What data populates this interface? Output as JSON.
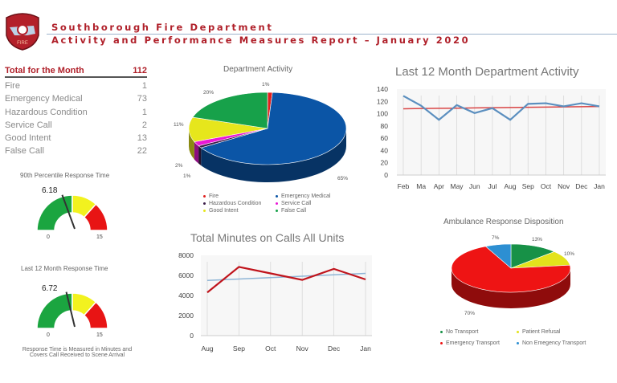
{
  "header": {
    "logo_text": "FIRE",
    "title": "Southborough Fire Department",
    "subtitle": "Activity and Performance Measures Report – January 2020"
  },
  "summary_table": {
    "header_label": "Total for the Month",
    "header_value": "112",
    "rows": [
      {
        "label": "Fire",
        "value": "1"
      },
      {
        "label": "Emergency Medical",
        "value": "73"
      },
      {
        "label": "Hazardous Condition",
        "value": "1"
      },
      {
        "label": "Service Call",
        "value": "2"
      },
      {
        "label": "Good Intent",
        "value": "13"
      },
      {
        "label": "False Call",
        "value": "22"
      }
    ]
  },
  "gauges": [
    {
      "title": "90th Percentile Response Time",
      "value": 6.18,
      "value_label": "6.18",
      "min_label": "0",
      "max_label": "15",
      "min": 0,
      "max": 15
    },
    {
      "title": "Last 12 Month Response Time",
      "value": 6.72,
      "value_label": "6.72",
      "min_label": "0",
      "max_label": "15",
      "min": 0,
      "max": 15
    }
  ],
  "footnote": [
    "Response Time is Measured in Minutes and",
    "Covers Call Received to Scene Arrival"
  ],
  "chart_data": [
    {
      "type": "pie",
      "title": "Department Activity",
      "categories": [
        "Fire",
        "Emergency Medical",
        "Hazardous Condition",
        "Service Call",
        "Good Intent",
        "False Call"
      ],
      "values": [
        1,
        65,
        1,
        2,
        11,
        20
      ],
      "labels": [
        "1%",
        "65%",
        "1%",
        "2%",
        "11%",
        "20%"
      ],
      "colors": [
        "#e0201e",
        "#0b55a6",
        "#3a1b48",
        "#ea18d6",
        "#e6e61c",
        "#17a14a"
      ],
      "legend": "bottom"
    },
    {
      "type": "line",
      "title": "Last 12 Month Department Activity",
      "categories": [
        "Feb",
        "Ma",
        "Apr",
        "May",
        "Jun",
        "Jul",
        "Aug",
        "Sep",
        "Oct",
        "Nov",
        "Dec",
        "Jan"
      ],
      "series": [
        {
          "values": [
            129,
            113,
            90,
            114,
            101,
            109,
            90,
            116,
            117,
            112,
            117,
            112
          ],
          "color": "#5b8fbf"
        },
        {
          "values": [
            108,
            108.4,
            108.7,
            109,
            109.4,
            109.7,
            110,
            110.4,
            110.7,
            111,
            111.4,
            111.7
          ],
          "color": "#d94545"
        }
      ],
      "yticks": [
        "0",
        "20",
        "40",
        "60",
        "80",
        "100",
        "120",
        "140"
      ],
      "ylim": [
        0,
        140
      ],
      "grid": "vertical"
    },
    {
      "type": "line",
      "title": "Total Minutes on Calls All Units",
      "categories": [
        "Aug",
        "Sep",
        "Oct",
        "Nov",
        "Dec",
        "Jan"
      ],
      "series": [
        {
          "values": [
            4300,
            6850,
            6200,
            5550,
            6650,
            5600
          ],
          "color": "#c0141c"
        },
        {
          "values": [
            5500,
            5640,
            5780,
            5920,
            6060,
            6200
          ],
          "color": "#8fb5d6"
        }
      ],
      "yticks": [
        "0",
        "2000",
        "4000",
        "6000",
        "8000"
      ],
      "ylim": [
        0,
        8000
      ],
      "grid": "vertical"
    },
    {
      "type": "pie",
      "title": "Ambulance Response Disposition",
      "categories": [
        "No Transport",
        "Patient Refusal",
        "Emergency Transport",
        "Non Emegency Transport"
      ],
      "values": [
        13,
        10,
        70,
        7
      ],
      "labels": [
        "13%",
        "10%",
        "70%",
        "7%"
      ],
      "colors": [
        "#179147",
        "#e3e31c",
        "#ee1414",
        "#2d8fd2"
      ],
      "legend": "bottom"
    }
  ]
}
